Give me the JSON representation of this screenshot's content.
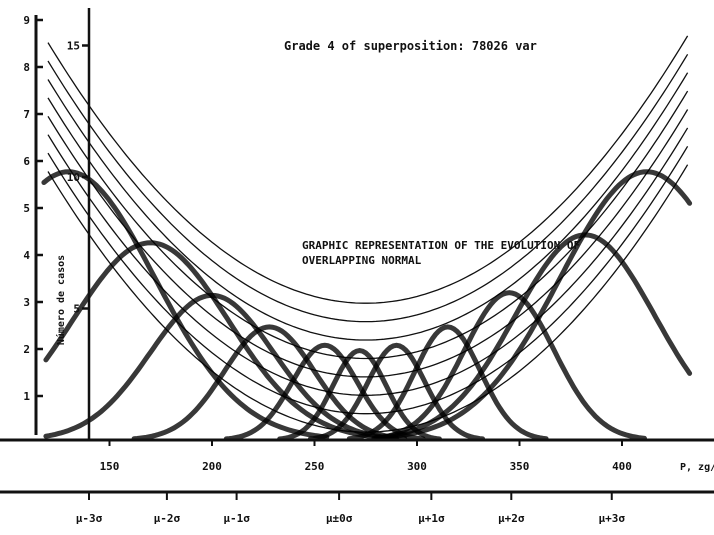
{
  "chart_data": {
    "type": "line",
    "grade_text": "Grade 4 of superposition: 78026 var",
    "title_lines": [
      "GRAPHIC REPRESENTATION OF THE EVOLUTION OF",
      "OVERLAPPING NORMAL"
    ],
    "ylabel": "Número de casos",
    "xlabel": "P, zg/",
    "xlim": [
      120,
      432
    ],
    "x_ticks": [
      150,
      200,
      250,
      300,
      350,
      400
    ],
    "y_outer_ticks": [
      "1",
      "2",
      "3",
      "4",
      "5",
      "6",
      "7",
      "8",
      "9"
    ],
    "y_inner_ticks": [
      "5",
      "10",
      "15"
    ],
    "y_inner_values": [
      5,
      10,
      15
    ],
    "ylim_inner": [
      0,
      17.5
    ],
    "sigma_labels": [
      "µ-3σ",
      "µ-2σ",
      "µ-1σ",
      "µ±0σ",
      "µ+1σ",
      "µ+2σ",
      "µ+3σ"
    ],
    "sigma_positions": [
      140,
      178,
      212,
      262,
      307,
      346,
      395
    ],
    "mu": 275,
    "sigma": 45,
    "bowl_curves": [
      {
        "base": 0.3,
        "amp": 11.6
      },
      {
        "base": 1.0,
        "amp": 11.6
      },
      {
        "base": 1.7,
        "amp": 11.6
      },
      {
        "base": 2.4,
        "amp": 11.6
      },
      {
        "base": 3.1,
        "amp": 11.6
      },
      {
        "base": 3.8,
        "amp": 11.6
      },
      {
        "base": 4.5,
        "amp": 11.6
      },
      {
        "base": 5.2,
        "amp": 11.6
      }
    ],
    "normal_curves": [
      {
        "center": 130,
        "peak": 10.2,
        "width": 42
      },
      {
        "center": 170,
        "peak": 7.5,
        "width": 38
      },
      {
        "center": 200,
        "peak": 5.5,
        "width": 30
      },
      {
        "center": 228,
        "peak": 4.3,
        "width": 22
      },
      {
        "center": 255,
        "peak": 3.6,
        "width": 16
      },
      {
        "center": 272,
        "peak": 3.4,
        "width": 13
      },
      {
        "center": 290,
        "peak": 3.6,
        "width": 14
      },
      {
        "center": 315,
        "peak": 4.3,
        "width": 16
      },
      {
        "center": 345,
        "peak": 5.6,
        "width": 22
      },
      {
        "center": 382,
        "peak": 7.8,
        "width": 34
      },
      {
        "center": 412,
        "peak": 10.2,
        "width": 42
      }
    ]
  }
}
